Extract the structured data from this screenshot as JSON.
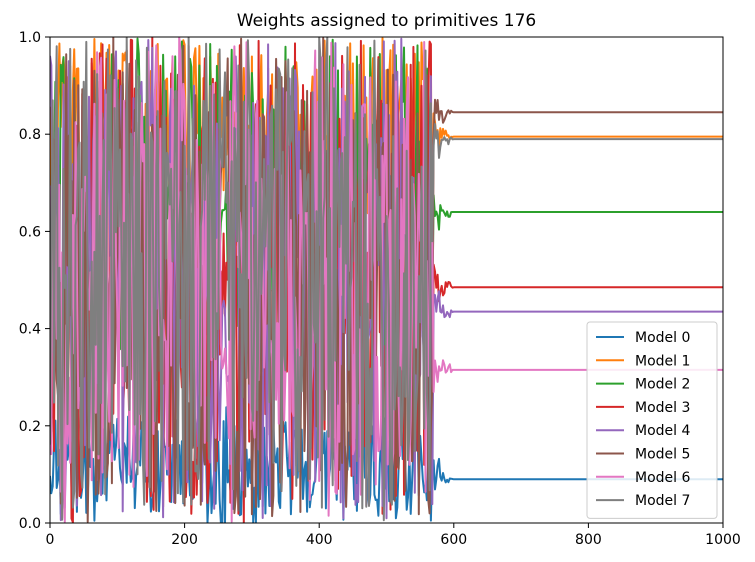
{
  "chart_data": {
    "type": "line",
    "title": "Weights assigned to primitives 176",
    "xlabel": "",
    "ylabel": "",
    "xlim": [
      0,
      1000
    ],
    "ylim": [
      0.0,
      1.0
    ],
    "xticks": [
      0,
      200,
      400,
      600,
      800,
      1000
    ],
    "yticks": [
      "0.0",
      "0.2",
      "0.4",
      "0.6",
      "0.8",
      "1.0"
    ],
    "grid": false,
    "legend_position": "lower right",
    "series": [
      {
        "name": "Model 0",
        "color": "#1f77b4",
        "final": 0.09,
        "low": 0.0,
        "high": 0.22,
        "settle_start": 570,
        "settle_end": 600
      },
      {
        "name": "Model 1",
        "color": "#ff7f0e",
        "final": 0.795,
        "low": 0.55,
        "high": 1.0,
        "settle_start": 570,
        "settle_end": 600
      },
      {
        "name": "Model 2",
        "color": "#2ca02c",
        "final": 0.64,
        "low": 0.3,
        "high": 1.0,
        "settle_start": 570,
        "settle_end": 600
      },
      {
        "name": "Model 3",
        "color": "#d62728",
        "final": 0.485,
        "low": 0.0,
        "high": 1.0,
        "settle_start": 570,
        "settle_end": 600
      },
      {
        "name": "Model 4",
        "color": "#9467bd",
        "final": 0.435,
        "low": 0.0,
        "high": 1.0,
        "settle_start": 570,
        "settle_end": 600
      },
      {
        "name": "Model 5",
        "color": "#8c564b",
        "final": 0.845,
        "low": 0.0,
        "high": 1.0,
        "settle_start": 570,
        "settle_end": 600
      },
      {
        "name": "Model 6",
        "color": "#e377c2",
        "final": 0.315,
        "low": 0.0,
        "high": 1.0,
        "settle_start": 570,
        "settle_end": 600
      },
      {
        "name": "Model 7",
        "color": "#7f7f7f",
        "final": 0.79,
        "low": 0.0,
        "high": 1.0,
        "settle_start": 570,
        "settle_end": 600
      }
    ]
  }
}
